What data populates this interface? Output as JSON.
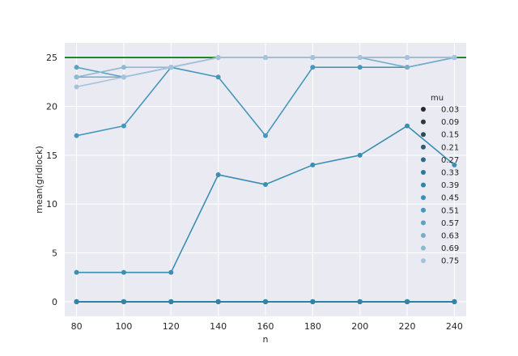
{
  "chart_data": {
    "type": "line",
    "title": "",
    "xlabel": "n",
    "ylabel": "mean(gridlock)",
    "x": [
      80,
      100,
      120,
      140,
      160,
      180,
      200,
      220,
      240
    ],
    "xlim": [
      75,
      245
    ],
    "ylim": [
      -1.5,
      26.5
    ],
    "yticks": [
      0,
      5,
      10,
      15,
      20,
      25
    ],
    "grid": true,
    "background": "#EAEAF2",
    "reference_line": {
      "y": 25,
      "color": "#008000"
    },
    "legend": {
      "title": "mu",
      "placement": "right"
    },
    "series": [
      {
        "name": "0.03",
        "color": "#2b2b2b",
        "values": [
          0,
          0,
          0,
          0,
          0,
          0,
          0,
          0,
          0
        ]
      },
      {
        "name": "0.09",
        "color": "#2d3940",
        "values": [
          0,
          0,
          0,
          0,
          0,
          0,
          0,
          0,
          0
        ]
      },
      {
        "name": "0.15",
        "color": "#2f4a5a",
        "values": [
          0,
          0,
          0,
          0,
          0,
          0,
          0,
          0,
          0
        ]
      },
      {
        "name": "0.21",
        "color": "#2f5b71",
        "values": [
          0,
          0,
          0,
          0,
          0,
          0,
          0,
          0,
          0
        ]
      },
      {
        "name": "0.27",
        "color": "#2e6a86",
        "values": [
          0,
          0,
          0,
          0,
          0,
          0,
          0,
          0,
          0
        ]
      },
      {
        "name": "0.33",
        "color": "#2b7a9c",
        "values": [
          0,
          0,
          0,
          0,
          0,
          0,
          0,
          0,
          0
        ]
      },
      {
        "name": "0.39",
        "color": "#2b86aa",
        "values": [
          0,
          0,
          0,
          0,
          0,
          0,
          0,
          0,
          0
        ]
      },
      {
        "name": "0.45",
        "color": "#3a8fb2",
        "values": [
          3,
          3,
          3,
          13,
          12,
          14,
          15,
          18,
          14
        ]
      },
      {
        "name": "0.51",
        "color": "#4697bb",
        "values": [
          17,
          18,
          24,
          23,
          17,
          24,
          24,
          24,
          25
        ]
      },
      {
        "name": "0.57",
        "color": "#5ea1c1",
        "values": [
          24,
          23,
          24,
          25,
          25,
          25,
          25,
          25,
          25
        ]
      },
      {
        "name": "0.63",
        "color": "#78acca",
        "values": [
          23,
          23,
          24,
          25,
          25,
          25,
          25,
          24,
          25
        ]
      },
      {
        "name": "0.69",
        "color": "#8fb8d3",
        "values": [
          23,
          24,
          24,
          25,
          25,
          25,
          25,
          25,
          25
        ]
      },
      {
        "name": "0.75",
        "color": "#a6c3dd",
        "values": [
          22,
          23,
          24,
          25,
          25,
          25,
          25,
          25,
          25
        ]
      }
    ]
  }
}
